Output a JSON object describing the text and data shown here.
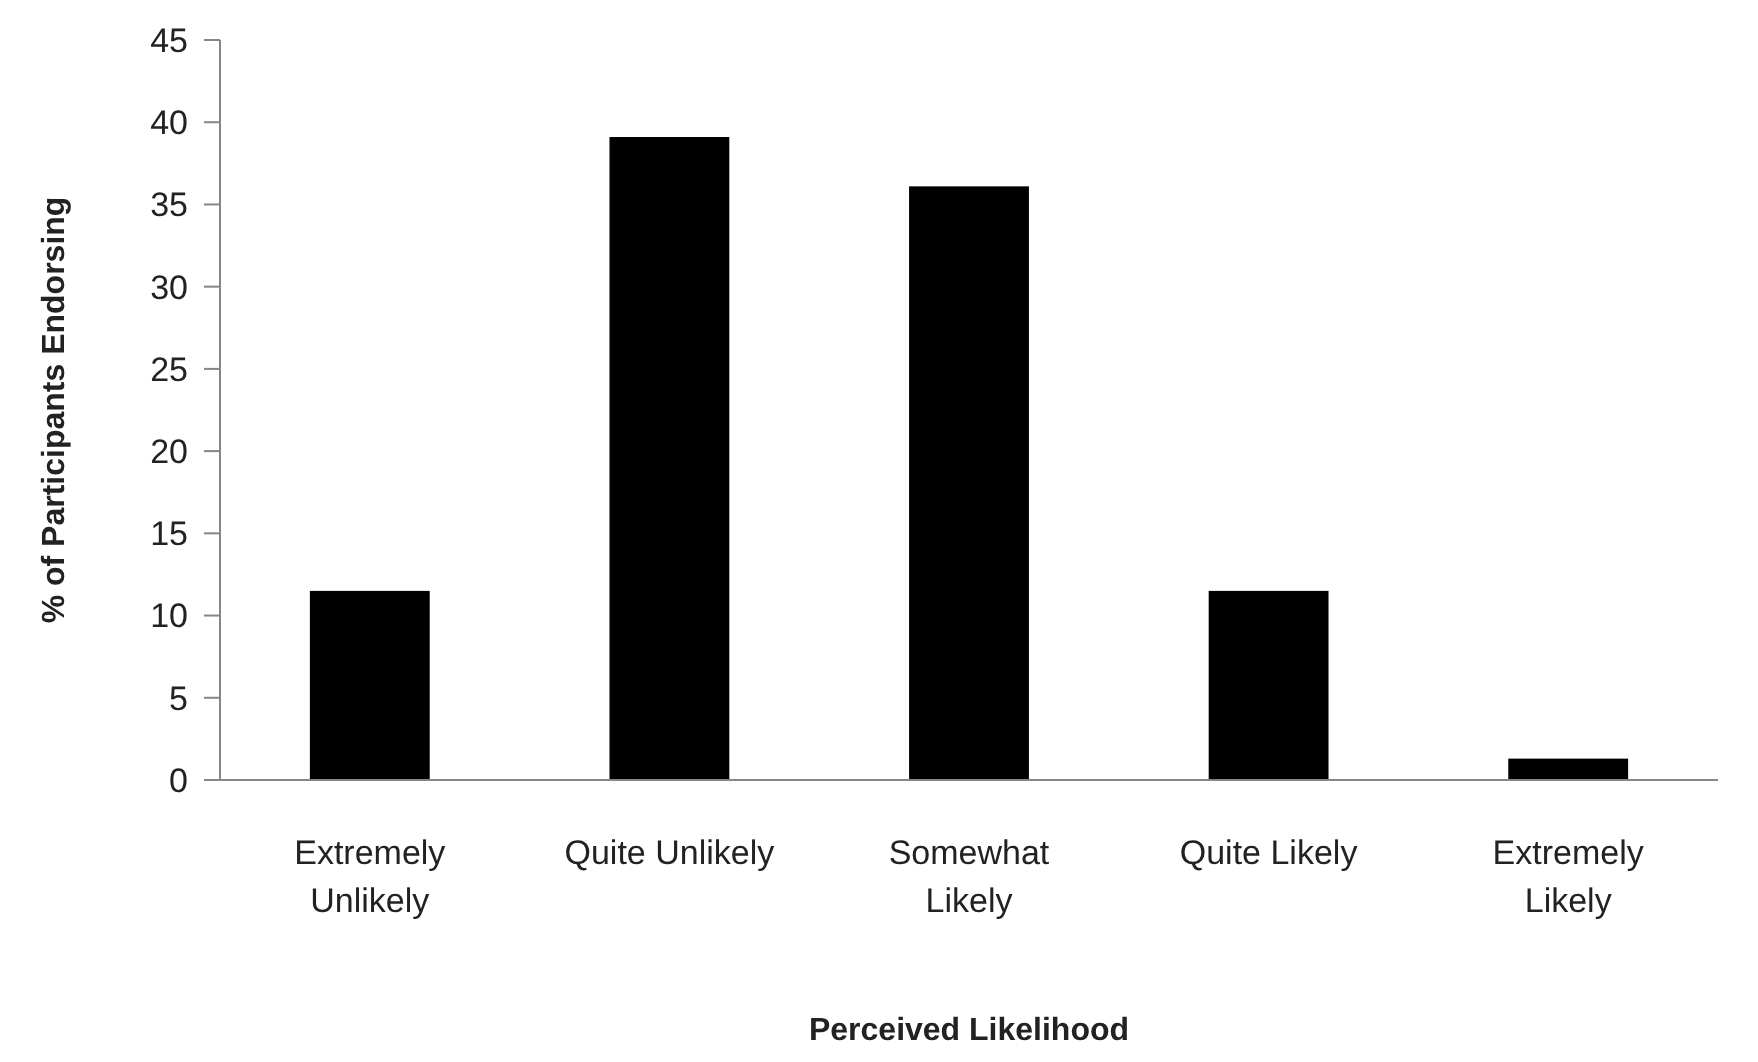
{
  "chart_data": {
    "type": "bar",
    "xlabel": "Perceived Likelihood",
    "ylabel": "% of Participants Endorsing",
    "categories": [
      "Extremely Unlikely",
      "Quite Unlikely",
      "Somewhat Likely",
      "Quite Likely",
      "Extremely Likely"
    ],
    "values": [
      11.5,
      39.1,
      36.1,
      11.5,
      1.3
    ],
    "color": "#000000",
    "ylim": [
      0,
      45
    ],
    "yticks": [
      0,
      5,
      10,
      15,
      20,
      25,
      30,
      35,
      40,
      45
    ],
    "grid": false
  }
}
